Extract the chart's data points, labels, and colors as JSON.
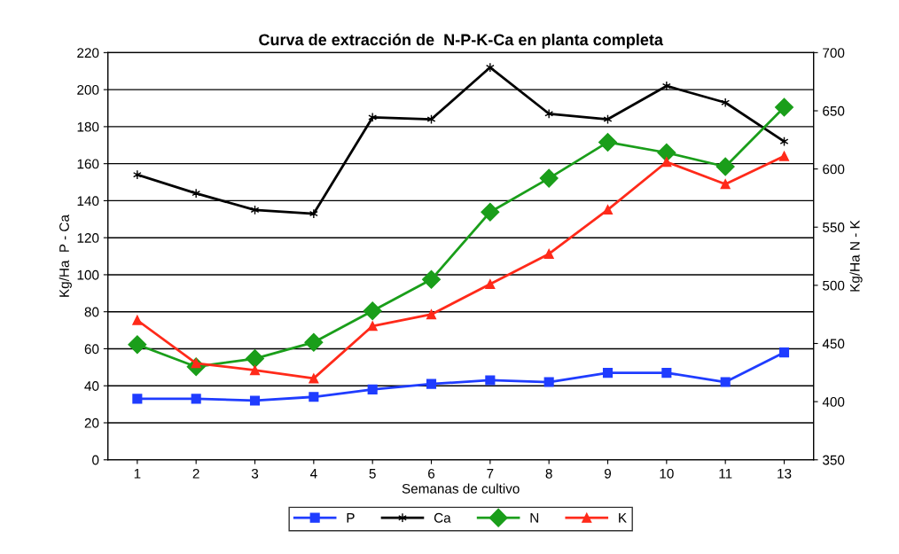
{
  "chart_data": {
    "type": "line",
    "title": "Curva de extracción de  N-P-K-Ca en planta completa",
    "xlabel": "Semanas de cultivo",
    "ylabel": "Kg/Ha  P - Ca",
    "y2label": "Kg/Ha N - K",
    "categories": [
      "1",
      "2",
      "3",
      "4",
      "5",
      "6",
      "7",
      "8",
      "9",
      "10",
      "11",
      "13"
    ],
    "series": [
      {
        "name": "P",
        "color": "#1f3cff",
        "marker": "square",
        "values": [
          33,
          33,
          32,
          34,
          38,
          41,
          43,
          42,
          47,
          47,
          42,
          58
        ]
      },
      {
        "name": "Ca",
        "color": "#000000",
        "marker": "cross",
        "values": [
          154,
          144,
          135,
          133,
          185,
          184,
          212,
          187,
          184,
          202,
          193,
          172
        ]
      },
      {
        "name": "N",
        "color": "#1a9e1a",
        "marker": "diamond",
        "axis": "y2",
        "values": [
          449,
          430,
          437,
          451,
          478,
          505,
          563,
          592,
          623,
          614,
          602,
          653
        ]
      },
      {
        "name": "K",
        "color": "#ff2a1a",
        "marker": "triangle",
        "axis": "y2",
        "values": [
          470,
          433,
          427,
          420,
          465,
          475,
          501,
          527,
          565,
          606,
          587,
          611
        ]
      }
    ],
    "ylim": [
      0,
      220
    ],
    "yticks": [
      0,
      20,
      40,
      60,
      80,
      100,
      120,
      140,
      160,
      180,
      200,
      220
    ],
    "y2lim": [
      350,
      700
    ],
    "y2ticks": [
      350,
      400,
      450,
      500,
      550,
      600,
      650,
      700
    ],
    "grid": "y",
    "legend": "bottom",
    "line_style": "solid"
  }
}
